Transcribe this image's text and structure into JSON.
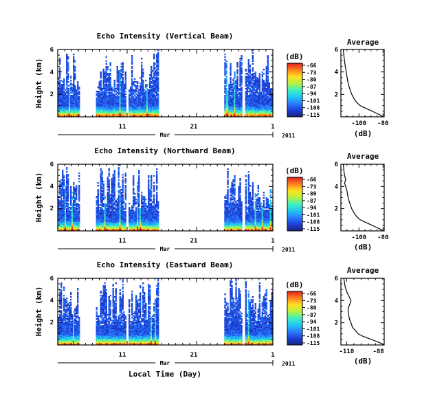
{
  "figure": {
    "xlabel": "Local Time (Day)",
    "month_label": "Mar",
    "year_label": "2011"
  },
  "colorbar": {
    "unit_label": "(dB)",
    "ticks": [
      "-66",
      "-73",
      "-80",
      "-87",
      "-94",
      "-101",
      "-108",
      "-115"
    ],
    "colors": [
      "#1a237e",
      "#1e3fd8",
      "#2a7fff",
      "#20c8f0",
      "#40f0c0",
      "#b8f040",
      "#ffe020",
      "#ff8020",
      "#e02020"
    ]
  },
  "chart_data": [
    {
      "type": "heatmap",
      "title": "Echo Intensity (Vertical Beam)",
      "ylabel": "Height (km)",
      "ylim": [
        0,
        6
      ],
      "y_ticks": [
        "6",
        "4",
        "2"
      ],
      "x_ticks": [
        "11",
        "21",
        "1"
      ],
      "x_tick_values": [
        11,
        21,
        32
      ],
      "x_range_day": [
        1,
        32
      ],
      "z_unit": "dB",
      "z_range": [
        -115,
        -66
      ],
      "data_segments_day": [
        [
          1,
          4
        ],
        [
          6.5,
          10.8
        ],
        [
          11.2,
          15.5
        ],
        [
          25,
          27.5
        ],
        [
          28,
          32
        ]
      ]
    },
    {
      "type": "line",
      "title": "Average",
      "xlabel": "(dB)",
      "ylim": [
        0,
        6
      ],
      "y_ticks": [
        "6",
        "4",
        "2"
      ],
      "x_ticks": [
        "-100",
        "-80"
      ],
      "xlim": [
        -115,
        -79
      ],
      "x": [
        -80,
        -83,
        -87,
        -91,
        -95,
        -99,
        -102,
        -104,
        -106,
        -107,
        -108,
        -109,
        -109.5,
        -110,
        -110.5,
        -111,
        -111.5,
        -112,
        -112.5,
        -113
      ],
      "y": [
        0,
        0.2,
        0.4,
        0.6,
        0.8,
        1.0,
        1.3,
        1.6,
        2.0,
        2.3,
        2.6,
        3.0,
        3.3,
        3.6,
        4.0,
        4.3,
        4.6,
        5.0,
        5.4,
        6.0
      ]
    },
    {
      "type": "heatmap",
      "title": "Echo Intensity (Northward Beam)",
      "ylabel": "Height (km)",
      "ylim": [
        0,
        6
      ],
      "y_ticks": [
        "6",
        "4",
        "2"
      ],
      "x_ticks": [
        "11",
        "21",
        "1"
      ],
      "x_tick_values": [
        11,
        21,
        32
      ],
      "x_range_day": [
        1,
        32
      ],
      "z_unit": "dB",
      "z_range": [
        -115,
        -66
      ],
      "data_segments_day": [
        [
          1,
          4
        ],
        [
          6.5,
          10.8
        ],
        [
          11.2,
          15.5
        ],
        [
          25,
          27.5
        ],
        [
          28,
          32
        ]
      ]
    },
    {
      "type": "line",
      "title": "Average",
      "xlabel": "(dB)",
      "ylim": [
        0,
        6
      ],
      "y_ticks": [
        "6",
        "4",
        "2"
      ],
      "x_ticks": [
        "-100",
        "-80"
      ],
      "xlim": [
        -115,
        -79
      ],
      "x": [
        -80,
        -83,
        -87,
        -91,
        -95,
        -99,
        -102,
        -104,
        -106,
        -107,
        -108,
        -109,
        -109.5,
        -110,
        -111,
        -112,
        -111,
        -112,
        -112.5,
        -113
      ],
      "y": [
        0,
        0.2,
        0.4,
        0.6,
        0.8,
        1.0,
        1.3,
        1.6,
        2.0,
        2.3,
        2.6,
        3.0,
        3.3,
        3.6,
        4.0,
        4.3,
        4.6,
        5.0,
        5.4,
        6.0
      ]
    },
    {
      "type": "heatmap",
      "title": "Echo Intensity (Eastward Beam)",
      "ylabel": "Height (km)",
      "ylim": [
        0,
        6
      ],
      "y_ticks": [
        "6",
        "4",
        "2"
      ],
      "x_ticks": [
        "11",
        "21",
        "1"
      ],
      "x_tick_values": [
        11,
        21,
        32
      ],
      "x_range_day": [
        1,
        32
      ],
      "z_unit": "dB",
      "z_range": [
        -115,
        -66
      ],
      "data_segments_day": [
        [
          1,
          4
        ],
        [
          6.5,
          10.8
        ],
        [
          11.2,
          15.5
        ],
        [
          25,
          27.5
        ],
        [
          28,
          32
        ]
      ]
    },
    {
      "type": "line",
      "title": "Average",
      "xlabel": "(dB)",
      "ylim": [
        0,
        6
      ],
      "y_ticks": [
        "6",
        "4",
        "2"
      ],
      "x_ticks": [
        "-110",
        "-88"
      ],
      "xlim": [
        -114,
        -84
      ],
      "x": [
        -84,
        -87,
        -91,
        -95,
        -99,
        -102,
        -104,
        -106,
        -107,
        -108,
        -108.5,
        -109,
        -109,
        -108,
        -107,
        -108.5,
        -110,
        -111,
        -111.5,
        -112
      ],
      "y": [
        0,
        0.2,
        0.4,
        0.6,
        0.8,
        1.0,
        1.3,
        1.6,
        2.0,
        2.3,
        2.6,
        3.0,
        3.3,
        3.6,
        4.0,
        4.4,
        4.8,
        5.2,
        5.6,
        6.0
      ]
    }
  ]
}
